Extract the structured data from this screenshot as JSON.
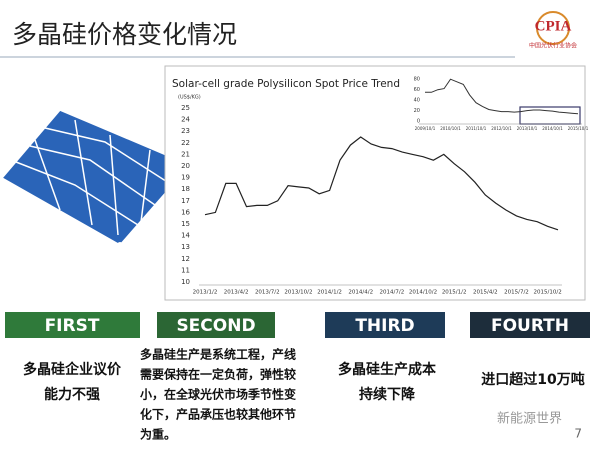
{
  "title": "多晶硅价格变化情况",
  "logo": {
    "name": "CPIA",
    "subtitle": "中国光伏行业协会"
  },
  "chart_data": [
    {
      "type": "line",
      "title": "Solar-cell grade Polysilicon Spot Price Trend",
      "y_label": "(US$/KG)",
      "categories": [
        "2013/1/2",
        null,
        null,
        "2013/4/2",
        null,
        null,
        "2013/7/2",
        null,
        null,
        "2013/10/2",
        null,
        null,
        "2014/1/2",
        null,
        null,
        "2014/4/2",
        null,
        null,
        "2014/7/2",
        null,
        null,
        "2014/10/2",
        null,
        null,
        "2015/1/2",
        null,
        null,
        "2015/4/2",
        null,
        null,
        "2015/7/2",
        null,
        null,
        "2015/10/2",
        null
      ],
      "values": [
        15.8,
        16.0,
        18.5,
        18.5,
        16.5,
        16.6,
        16.6,
        17.0,
        18.3,
        18.2,
        18.1,
        17.6,
        17.9,
        20.5,
        21.8,
        22.5,
        21.9,
        21.6,
        21.5,
        21.2,
        21.0,
        20.8,
        20.5,
        21.0,
        20.2,
        19.5,
        18.6,
        17.5,
        16.8,
        16.2,
        15.7,
        15.4,
        15.2,
        14.8,
        14.5
      ],
      "color": "#222222",
      "ylim": [
        10,
        25
      ],
      "yticks": [
        10,
        11,
        12,
        13,
        14,
        15,
        16,
        17,
        18,
        19,
        20,
        21,
        22,
        23,
        24,
        25
      ],
      "grid": false
    },
    {
      "type": "line",
      "categories": [
        "2009/10/1",
        null,
        null,
        null,
        "2010/10/1",
        null,
        null,
        null,
        "2011/10/1",
        null,
        null,
        null,
        "2012/10/1",
        null,
        null,
        null,
        "2013/10/1",
        null,
        null,
        null,
        "2014/10/1",
        null,
        null,
        null,
        "2015/10/1"
      ],
      "values": [
        55,
        55,
        60,
        62,
        80,
        75,
        70,
        50,
        35,
        28,
        22,
        20,
        18,
        18,
        17,
        18,
        20,
        21,
        21,
        20,
        19,
        17,
        16,
        15,
        14
      ],
      "color": "#333333",
      "ylim": [
        0,
        90
      ],
      "yticks": [
        0,
        20,
        40,
        60,
        80
      ],
      "grid": false
    }
  ],
  "points": [
    {
      "label": "FIRST",
      "color": "#2f7a3a",
      "lines": [
        "多晶硅企业议价",
        "能力不强"
      ]
    },
    {
      "label": "SECOND",
      "color": "#2b6634",
      "lines": [
        "多晶硅生产是系统工程，产线",
        "需要保持在一定负荷，弹性较",
        "小，在全球光伏市场季节性变",
        "化下，产品承压也较其他环节",
        "为重。"
      ]
    },
    {
      "label": "THIRD",
      "color": "#1e3b58",
      "lines": [
        "多晶硅生产成本",
        "持续下降"
      ]
    },
    {
      "label": "FOURTH",
      "color": "#1d2d3b",
      "lines": [
        "进口超过10万吨"
      ]
    }
  ],
  "watermark": "新能源世界",
  "page_number": "7"
}
